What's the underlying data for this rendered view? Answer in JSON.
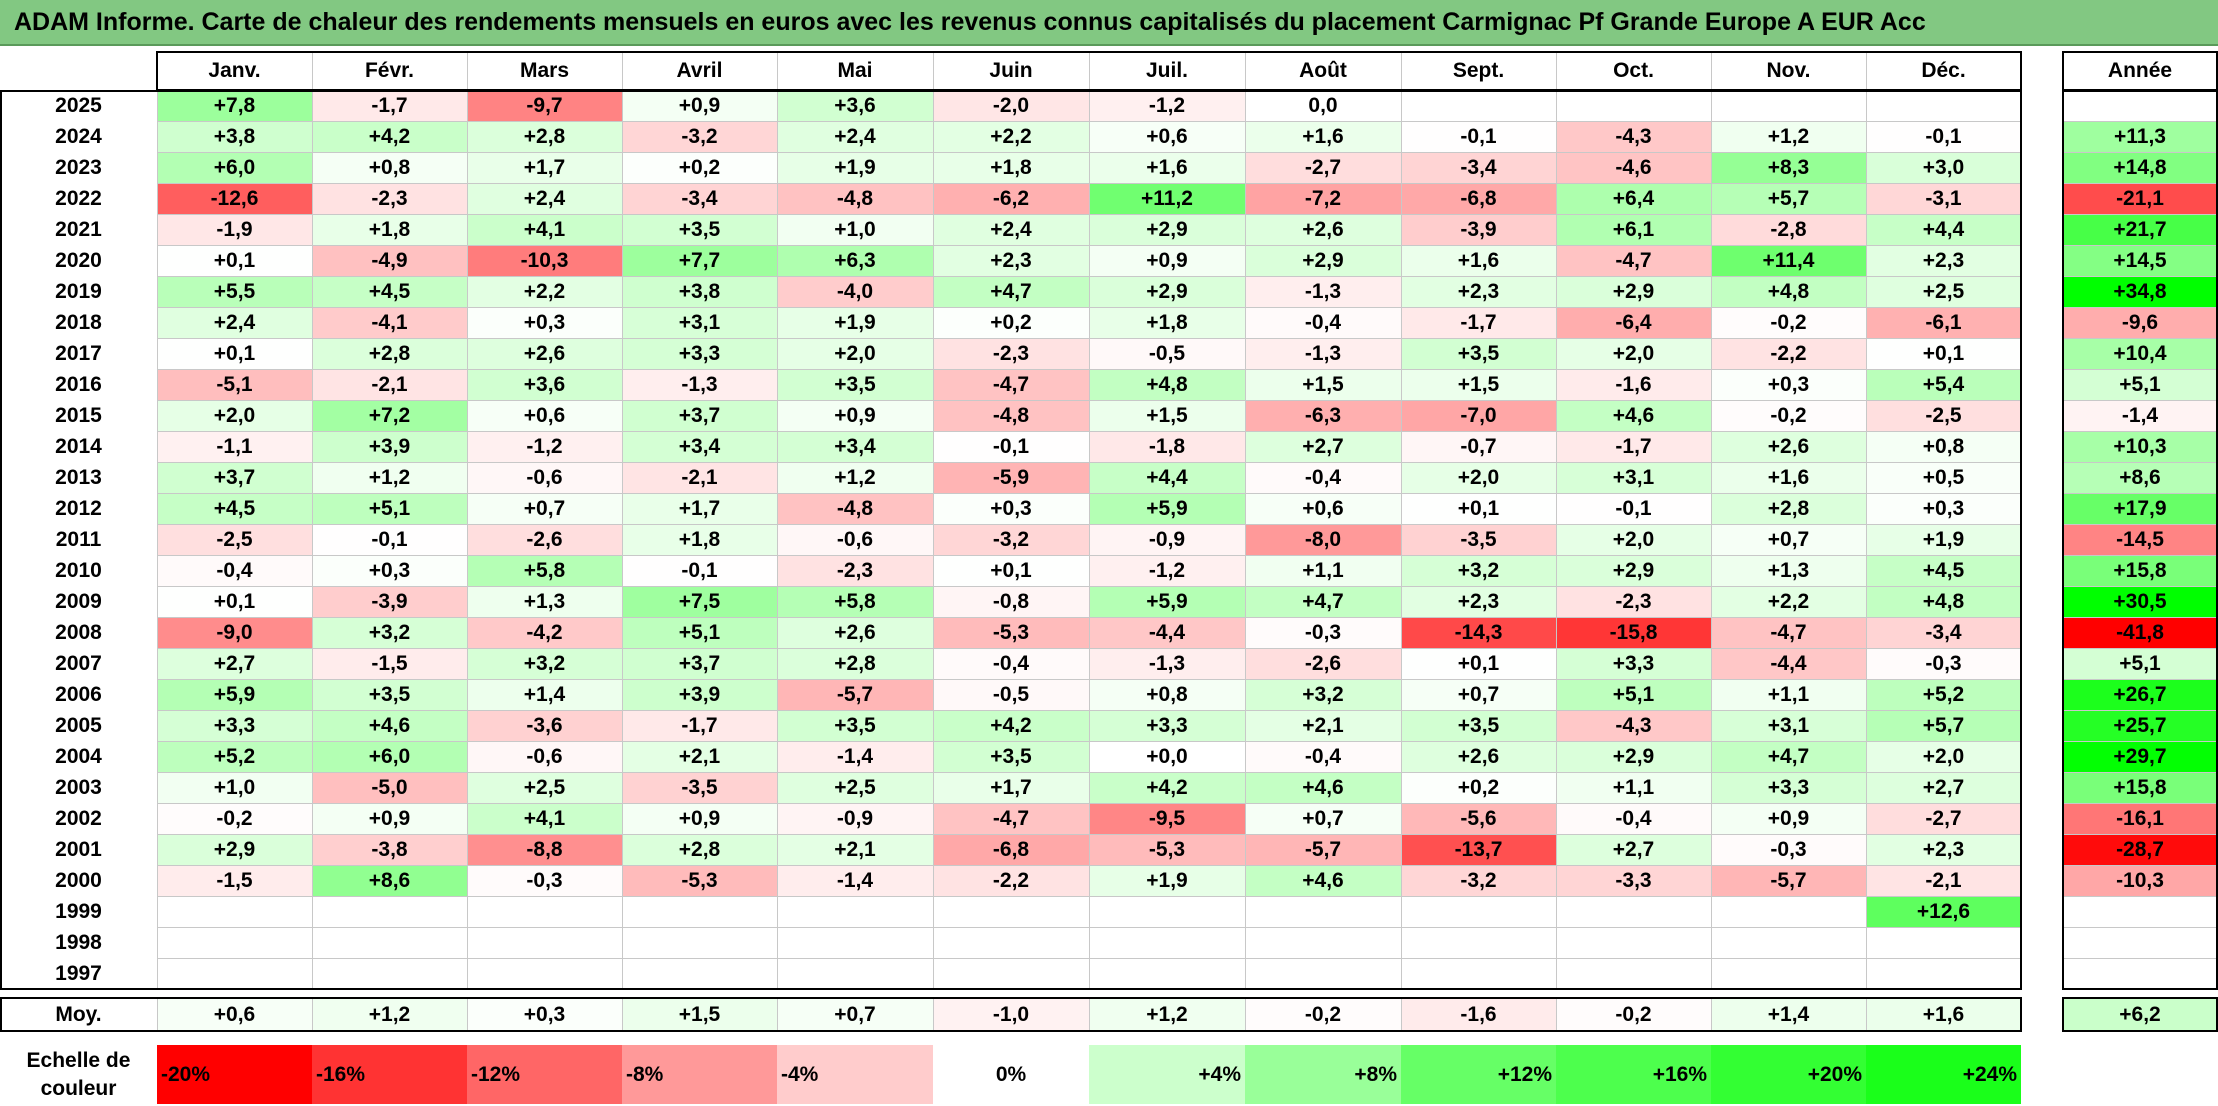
{
  "title": "ADAM Informe. Carte de chaleur des rendements mensuels en euros avec les revenus connus capitalisés du placement Carmignac Pf Grande Europe A EUR Acc",
  "chart_data": {
    "type": "heatmap",
    "title": "ADAM Informe. Carte de chaleur des rendements mensuels en euros avec les revenus connus capitalisés du placement Carmignac Pf Grande Europe A EUR Acc",
    "months": [
      "Janv.",
      "Févr.",
      "Mars",
      "Avril",
      "Mai",
      "Juin",
      "Juil.",
      "Août",
      "Sept.",
      "Oct.",
      "Nov.",
      "Déc."
    ],
    "year_header": "Année",
    "rows": [
      {
        "year": "2025",
        "months": [
          "+7,8",
          "-1,7",
          "-9,7",
          "+0,9",
          "+3,6",
          "-2,0",
          "-1,2",
          "0,0",
          "",
          "",
          "",
          ""
        ],
        "annual": ""
      },
      {
        "year": "2024",
        "months": [
          "+3,8",
          "+4,2",
          "+2,8",
          "-3,2",
          "+2,4",
          "+2,2",
          "+0,6",
          "+1,6",
          "-0,1",
          "-4,3",
          "+1,2",
          "-0,1"
        ],
        "annual": "+11,3"
      },
      {
        "year": "2023",
        "months": [
          "+6,0",
          "+0,8",
          "+1,7",
          "+0,2",
          "+1,9",
          "+1,8",
          "+1,6",
          "-2,7",
          "-3,4",
          "-4,6",
          "+8,3",
          "+3,0"
        ],
        "annual": "+14,8"
      },
      {
        "year": "2022",
        "months": [
          "-12,6",
          "-2,3",
          "+2,4",
          "-3,4",
          "-4,8",
          "-6,2",
          "+11,2",
          "-7,2",
          "-6,8",
          "+6,4",
          "+5,7",
          "-3,1"
        ],
        "annual": "-21,1"
      },
      {
        "year": "2021",
        "months": [
          "-1,9",
          "+1,8",
          "+4,1",
          "+3,5",
          "+1,0",
          "+2,4",
          "+2,9",
          "+2,6",
          "-3,9",
          "+6,1",
          "-2,8",
          "+4,4"
        ],
        "annual": "+21,7"
      },
      {
        "year": "2020",
        "months": [
          "+0,1",
          "-4,9",
          "-10,3",
          "+7,7",
          "+6,3",
          "+2,3",
          "+0,9",
          "+2,9",
          "+1,6",
          "-4,7",
          "+11,4",
          "+2,3"
        ],
        "annual": "+14,5"
      },
      {
        "year": "2019",
        "months": [
          "+5,5",
          "+4,5",
          "+2,2",
          "+3,8",
          "-4,0",
          "+4,7",
          "+2,9",
          "-1,3",
          "+2,3",
          "+2,9",
          "+4,8",
          "+2,5"
        ],
        "annual": "+34,8"
      },
      {
        "year": "2018",
        "months": [
          "+2,4",
          "-4,1",
          "+0,3",
          "+3,1",
          "+1,9",
          "+0,2",
          "+1,8",
          "-0,4",
          "-1,7",
          "-6,4",
          "-0,2",
          "-6,1"
        ],
        "annual": "-9,6"
      },
      {
        "year": "2017",
        "months": [
          "+0,1",
          "+2,8",
          "+2,6",
          "+3,3",
          "+2,0",
          "-2,3",
          "-0,5",
          "-1,3",
          "+3,5",
          "+2,0",
          "-2,2",
          "+0,1"
        ],
        "annual": "+10,4"
      },
      {
        "year": "2016",
        "months": [
          "-5,1",
          "-2,1",
          "+3,6",
          "-1,3",
          "+3,5",
          "-4,7",
          "+4,8",
          "+1,5",
          "+1,5",
          "-1,6",
          "+0,3",
          "+5,4"
        ],
        "annual": "+5,1"
      },
      {
        "year": "2015",
        "months": [
          "+2,0",
          "+7,2",
          "+0,6",
          "+3,7",
          "+0,9",
          "-4,8",
          "+1,5",
          "-6,3",
          "-7,0",
          "+4,6",
          "-0,2",
          "-2,5"
        ],
        "annual": "-1,4"
      },
      {
        "year": "2014",
        "months": [
          "-1,1",
          "+3,9",
          "-1,2",
          "+3,4",
          "+3,4",
          "-0,1",
          "-1,8",
          "+2,7",
          "-0,7",
          "-1,7",
          "+2,6",
          "+0,8"
        ],
        "annual": "+10,3"
      },
      {
        "year": "2013",
        "months": [
          "+3,7",
          "+1,2",
          "-0,6",
          "-2,1",
          "+1,2",
          "-5,9",
          "+4,4",
          "-0,4",
          "+2,0",
          "+3,1",
          "+1,6",
          "+0,5"
        ],
        "annual": "+8,6"
      },
      {
        "year": "2012",
        "months": [
          "+4,5",
          "+5,1",
          "+0,7",
          "+1,7",
          "-4,8",
          "+0,3",
          "+5,9",
          "+0,6",
          "+0,1",
          "-0,1",
          "+2,8",
          "+0,3"
        ],
        "annual": "+17,9"
      },
      {
        "year": "2011",
        "months": [
          "-2,5",
          "-0,1",
          "-2,6",
          "+1,8",
          "-0,6",
          "-3,2",
          "-0,9",
          "-8,0",
          "-3,5",
          "+2,0",
          "+0,7",
          "+1,9"
        ],
        "annual": "-14,5"
      },
      {
        "year": "2010",
        "months": [
          "-0,4",
          "+0,3",
          "+5,8",
          "-0,1",
          "-2,3",
          "+0,1",
          "-1,2",
          "+1,1",
          "+3,2",
          "+2,9",
          "+1,3",
          "+4,5"
        ],
        "annual": "+15,8"
      },
      {
        "year": "2009",
        "months": [
          "+0,1",
          "-3,9",
          "+1,3",
          "+7,5",
          "+5,8",
          "-0,8",
          "+5,9",
          "+4,7",
          "+2,3",
          "-2,3",
          "+2,2",
          "+4,8"
        ],
        "annual": "+30,5"
      },
      {
        "year": "2008",
        "months": [
          "-9,0",
          "+3,2",
          "-4,2",
          "+5,1",
          "+2,6",
          "-5,3",
          "-4,4",
          "-0,3",
          "-14,3",
          "-15,8",
          "-4,7",
          "-3,4"
        ],
        "annual": "-41,8"
      },
      {
        "year": "2007",
        "months": [
          "+2,7",
          "-1,5",
          "+3,2",
          "+3,7",
          "+2,8",
          "-0,4",
          "-1,3",
          "-2,6",
          "+0,1",
          "+3,3",
          "-4,4",
          "-0,3"
        ],
        "annual": "+5,1"
      },
      {
        "year": "2006",
        "months": [
          "+5,9",
          "+3,5",
          "+1,4",
          "+3,9",
          "-5,7",
          "-0,5",
          "+0,8",
          "+3,2",
          "+0,7",
          "+5,1",
          "+1,1",
          "+5,2"
        ],
        "annual": "+26,7"
      },
      {
        "year": "2005",
        "months": [
          "+3,3",
          "+4,6",
          "-3,6",
          "-1,7",
          "+3,5",
          "+4,2",
          "+3,3",
          "+2,1",
          "+3,5",
          "-4,3",
          "+3,1",
          "+5,7"
        ],
        "annual": "+25,7"
      },
      {
        "year": "2004",
        "months": [
          "+5,2",
          "+6,0",
          "-0,6",
          "+2,1",
          "-1,4",
          "+3,5",
          "+0,0",
          "-0,4",
          "+2,6",
          "+2,9",
          "+4,7",
          "+2,0"
        ],
        "annual": "+29,7"
      },
      {
        "year": "2003",
        "months": [
          "+1,0",
          "-5,0",
          "+2,5",
          "-3,5",
          "+2,5",
          "+1,7",
          "+4,2",
          "+4,6",
          "+0,2",
          "+1,1",
          "+3,3",
          "+2,7"
        ],
        "annual": "+15,8"
      },
      {
        "year": "2002",
        "months": [
          "-0,2",
          "+0,9",
          "+4,1",
          "+0,9",
          "-0,9",
          "-4,7",
          "-9,5",
          "+0,7",
          "-5,6",
          "-0,4",
          "+0,9",
          "-2,7"
        ],
        "annual": "-16,1"
      },
      {
        "year": "2001",
        "months": [
          "+2,9",
          "-3,8",
          "-8,8",
          "+2,8",
          "+2,1",
          "-6,8",
          "-5,3",
          "-5,7",
          "-13,7",
          "+2,7",
          "-0,3",
          "+2,3"
        ],
        "annual": "-28,7"
      },
      {
        "year": "2000",
        "months": [
          "-1,5",
          "+8,6",
          "-0,3",
          "-5,3",
          "-1,4",
          "-2,2",
          "+1,9",
          "+4,6",
          "-3,2",
          "-3,3",
          "-5,7",
          "-2,1"
        ],
        "annual": "-10,3"
      },
      {
        "year": "1999",
        "months": [
          "",
          "",
          "",
          "",
          "",
          "",
          "",
          "",
          "",
          "",
          "",
          "+12,6"
        ],
        "annual": ""
      },
      {
        "year": "1998",
        "months": [
          "",
          "",
          "",
          "",
          "",
          "",
          "",
          "",
          "",
          "",
          "",
          ""
        ],
        "annual": ""
      },
      {
        "year": "1997",
        "months": [
          "",
          "",
          "",
          "",
          "",
          "",
          "",
          "",
          "",
          "",
          "",
          ""
        ],
        "annual": ""
      }
    ],
    "average": {
      "label": "Moy.",
      "months": [
        "+0,6",
        "+1,2",
        "+0,3",
        "+1,5",
        "+0,7",
        "-1,0",
        "+1,2",
        "-0,2",
        "-1,6",
        "-0,2",
        "+1,4",
        "+1,6"
      ],
      "annual": "+6,2"
    },
    "scale": {
      "label_line1": "Echelle de",
      "label_line2": "couleur",
      "steps": [
        {
          "label": "-20%",
          "value": -20,
          "color": "#ff0000"
        },
        {
          "label": "-16%",
          "value": -16,
          "color": "#ff3333"
        },
        {
          "label": "-12%",
          "value": -12,
          "color": "#ff6666"
        },
        {
          "label": "-8%",
          "value": -8,
          "color": "#ff9999"
        },
        {
          "label": "-4%",
          "value": -4,
          "color": "#ffcccc"
        },
        {
          "label": "0%",
          "value": 0,
          "color": "#ffffff"
        },
        {
          "label": "+4%",
          "value": 4,
          "color": "#ccffcc"
        },
        {
          "label": "+8%",
          "value": 8,
          "color": "#99ff99"
        },
        {
          "label": "+12%",
          "value": 12,
          "color": "#66ff66"
        },
        {
          "label": "+16%",
          "value": 16,
          "color": "#4dff4d"
        },
        {
          "label": "+20%",
          "value": 20,
          "color": "#33ff33"
        },
        {
          "label": "+24%",
          "value": 24,
          "color": "#1aff1a"
        }
      ]
    },
    "colors": {
      "negative_max": "#ff0000",
      "positive_max": "#00ff00",
      "neutral": "#ffffff",
      "title_bar": "#82c882"
    }
  }
}
